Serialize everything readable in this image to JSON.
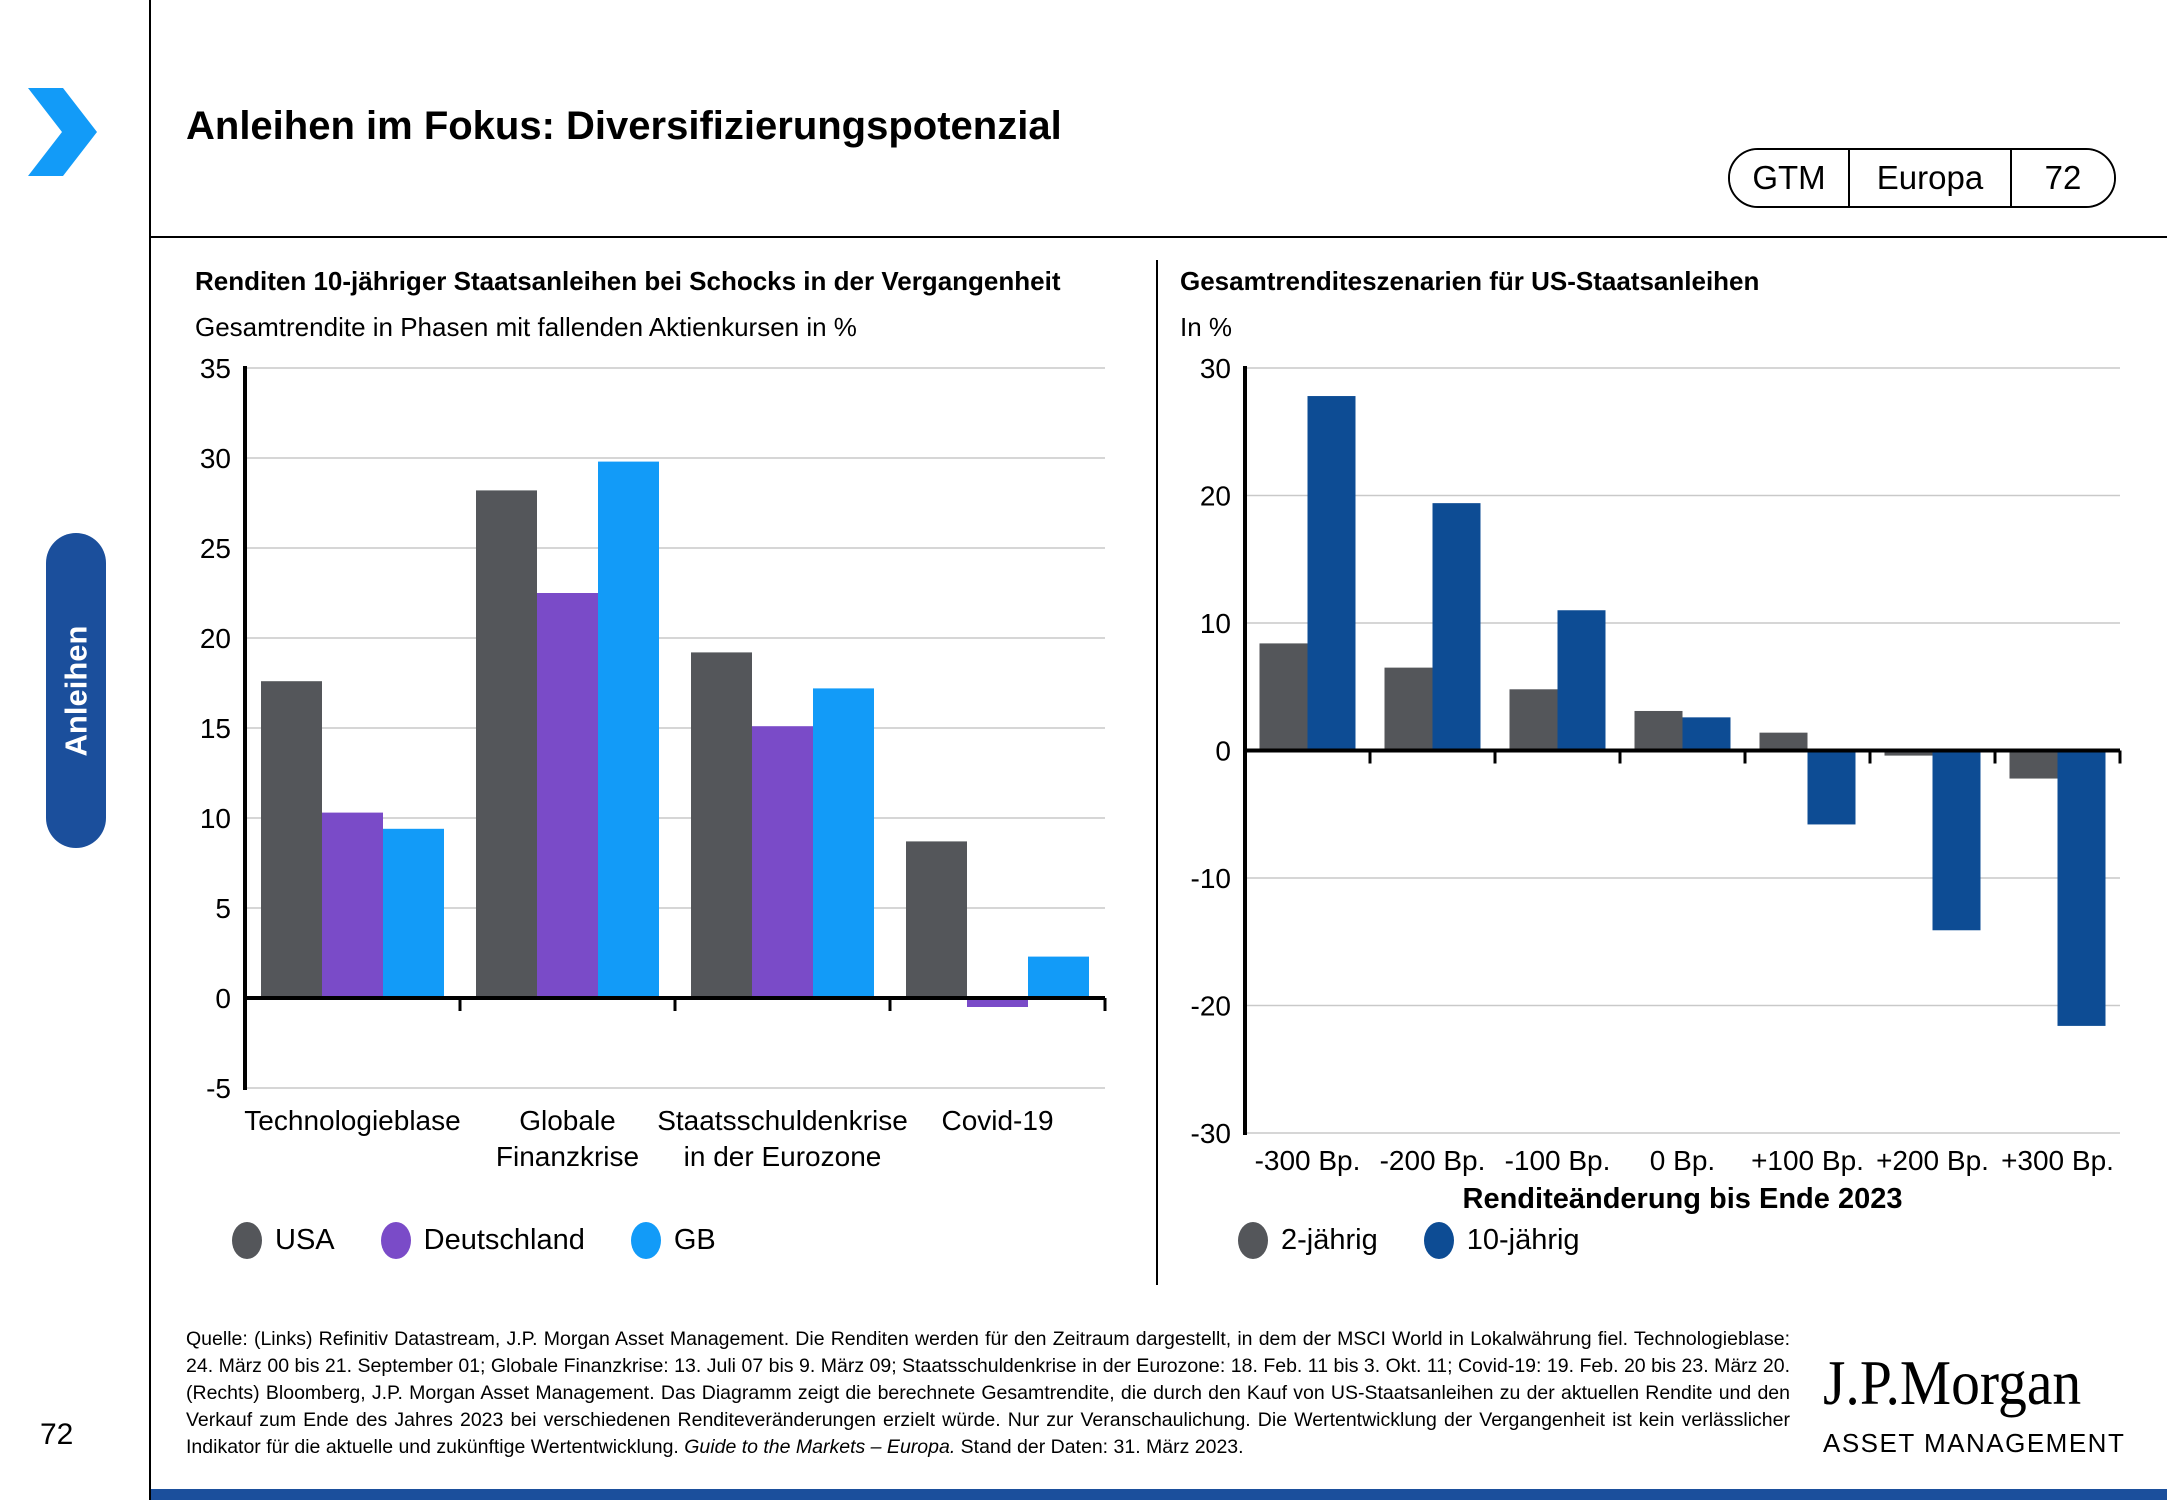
{
  "header": {
    "title": "Anleihen im Fokus: Diversifizierungspotenzial",
    "badge": {
      "program": "GTM",
      "region": "Europa",
      "page": "72"
    }
  },
  "sidebar": {
    "tab_label": "Anleihen"
  },
  "page_number": "72",
  "colors": {
    "accent_blue": "#129BF8",
    "navy": "#0D4C94",
    "gray": "#54565A",
    "purple": "#7A4BC8",
    "sidebar_blue": "#1B4F9C",
    "gridline": "#C9C9C9"
  },
  "chart_data": [
    {
      "type": "bar",
      "title": "Renditen 10-jähriger Staatsanleihen bei Schocks in der Vergangenheit",
      "subtitle": "Gesamtrendite in Phasen mit fallenden Aktienkursen in %",
      "categories": [
        "Technologieblase",
        "Globale\nFinanzkrise",
        "Staatsschuldenkrise\nin der Eurozone",
        "Covid-19"
      ],
      "series": [
        {
          "name": "USA",
          "color": "#54565A",
          "values": [
            17.6,
            28.2,
            19.2,
            8.7
          ]
        },
        {
          "name": "Deutschland",
          "color": "#7A4BC8",
          "values": [
            10.3,
            22.5,
            15.1,
            -0.5
          ]
        },
        {
          "name": "GB",
          "color": "#129BF8",
          "values": [
            9.4,
            29.8,
            17.2,
            2.3
          ]
        }
      ],
      "xlabel": "",
      "ylabel": "",
      "ylim": [
        -5,
        35
      ],
      "ytick_step": 5,
      "grid": true,
      "legend_position": "bottom"
    },
    {
      "type": "bar",
      "title": "Gesamtrenditeszenarien für US-Staatsanleihen",
      "subtitle": "In %",
      "categories": [
        "-300 Bp.",
        "-200 Bp.",
        "-100 Bp.",
        "0 Bp.",
        "+100 Bp.",
        "+200 Bp.",
        "+300 Bp."
      ],
      "series": [
        {
          "name": "2-jährig",
          "color": "#54565A",
          "values": [
            8.4,
            6.5,
            4.8,
            3.1,
            1.4,
            -0.4,
            -2.2
          ]
        },
        {
          "name": "10-jährig",
          "color": "#0D4C94",
          "values": [
            27.8,
            19.4,
            11.0,
            2.6,
            -5.8,
            -14.1,
            -21.6
          ]
        }
      ],
      "xlabel": "Renditeänderung bis Ende 2023",
      "ylabel": "",
      "ylim": [
        -30,
        30
      ],
      "ytick_step": 10,
      "grid": true,
      "legend_position": "bottom"
    }
  ],
  "footer": {
    "source_text": "Quelle: (Links) Refinitiv Datastream, J.P. Morgan Asset Management. Die Renditen werden für den Zeitraum dargestellt, in dem der MSCI World in Lokalwährung fiel. Technologieblase: 24. März 00 bis 21. September 01; Globale Finanzkrise: 13. Juli 07 bis 9. März 09; Staatsschuldenkrise in der Eurozone: 18. Feb. 11 bis 3. Okt. 11; Covid-19: 19. Feb. 20 bis 23. März 20. (Rechts) Bloomberg, J.P. Morgan Asset Management. Das Diagramm zeigt die berechnete Gesamtrendite, die durch den Kauf von US-Staatsanleihen zu der aktuellen Rendite und den Verkauf zum Ende des Jahres 2023 bei verschiedenen Renditeveränderungen erzielt würde. Nur zur Veranschaulichung. Die Wertentwicklung der Vergangenheit ist kein verlässlicher Indikator für die aktuelle und zukünftige Wertentwicklung. ",
    "italic_text": "Guide to the Markets – Europa.",
    "date_text": " Stand der Daten: 31. März 2023."
  },
  "logo": {
    "wordmark": "J.P.Morgan",
    "subbrand": "ASSET MANAGEMENT"
  }
}
